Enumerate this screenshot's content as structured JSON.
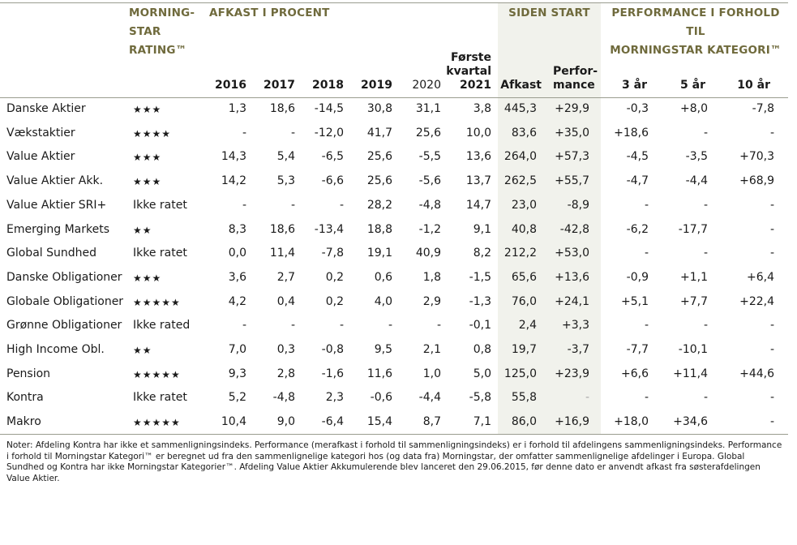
{
  "headers": {
    "rating": [
      "MORNING-",
      "STAR",
      "RATING™"
    ],
    "returns_group": "AFKAST I PROCENT",
    "since_group": "SIDEN START",
    "perf_group": [
      "PERFORMANCE I FORHOLD TIL",
      "MORNINGSTAR KATEGORI™"
    ],
    "years": [
      "2016",
      "2017",
      "2018",
      "2019",
      "2020"
    ],
    "q1": [
      "Første",
      "kvartal",
      "2021"
    ],
    "afkast": "Afkast",
    "performance": [
      "Perfor-",
      "mance"
    ],
    "periods": [
      "3 år",
      "5 år",
      "10 år"
    ]
  },
  "rows": [
    {
      "name": "Danske Aktier",
      "rating": "★★★",
      "y2016": "1,3",
      "y2017": "18,6",
      "y2018": "-14,5",
      "y2019": "30,8",
      "y2020": "31,1",
      "q1": "3,8",
      "afkast": "445,3",
      "perf": "+29,9",
      "p3": "-0,3",
      "p5": "+8,0",
      "p10": "-7,8"
    },
    {
      "name": "Vækstaktier",
      "rating": "★★★★",
      "y2016": "-",
      "y2017": "-",
      "y2018": "-12,0",
      "y2019": "41,7",
      "y2020": "25,6",
      "q1": "10,0",
      "afkast": "83,6",
      "perf": "+35,0",
      "p3": "+18,6",
      "p5": "-",
      "p10": "-"
    },
    {
      "name": "Value Aktier",
      "rating": "★★★",
      "y2016": "14,3",
      "y2017": "5,4",
      "y2018": "-6,5",
      "y2019": "25,6",
      "y2020": "-5,5",
      "q1": "13,6",
      "afkast": "264,0",
      "perf": "+57,3",
      "p3": "-4,5",
      "p5": "-3,5",
      "p10": "+70,3"
    },
    {
      "name": "Value Aktier Akk.",
      "rating": "★★★",
      "y2016": "14,2",
      "y2017": "5,3",
      "y2018": "-6,6",
      "y2019": "25,6",
      "y2020": "-5,6",
      "q1": "13,7",
      "afkast": "262,5",
      "perf": "+55,7",
      "p3": "-4,7",
      "p5": "-4,4",
      "p10": "+68,9"
    },
    {
      "name": "Value Aktier SRI+",
      "rating": "Ikke ratet",
      "y2016": "-",
      "y2017": "-",
      "y2018": "-",
      "y2019": "28,2",
      "y2020": "-4,8",
      "q1": "14,7",
      "afkast": "23,0",
      "perf": "-8,9",
      "p3": "-",
      "p5": "-",
      "p10": "-"
    },
    {
      "name": "Emerging Markets",
      "rating": "★★",
      "y2016": "8,3",
      "y2017": "18,6",
      "y2018": "-13,4",
      "y2019": "18,8",
      "y2020": "-1,2",
      "q1": "9,1",
      "afkast": "40,8",
      "perf": "-42,8",
      "p3": "-6,2",
      "p5": "-17,7",
      "p10": "-"
    },
    {
      "name": "Global Sundhed",
      "rating": "Ikke ratet",
      "y2016": "0,0",
      "y2017": "11,4",
      "y2018": "-7,8",
      "y2019": "19,1",
      "y2020": "40,9",
      "q1": "8,2",
      "afkast": "212,2",
      "perf": "+53,0",
      "p3": "-",
      "p5": "-",
      "p10": "-"
    },
    {
      "name": "Danske Obligationer",
      "rating": "★★★",
      "y2016": "3,6",
      "y2017": "2,7",
      "y2018": "0,2",
      "y2019": "0,6",
      "y2020": "1,8",
      "q1": "-1,5",
      "afkast": "65,6",
      "perf": "+13,6",
      "p3": "-0,9",
      "p5": "+1,1",
      "p10": "+6,4"
    },
    {
      "name": "Globale Obligationer",
      "rating": "★★★★★",
      "y2016": "4,2",
      "y2017": "0,4",
      "y2018": "0,2",
      "y2019": "4,0",
      "y2020": "2,9",
      "q1": "-1,3",
      "afkast": "76,0",
      "perf": "+24,1",
      "p3": "+5,1",
      "p5": "+7,7",
      "p10": "+22,4"
    },
    {
      "name": "Grønne Obligationer",
      "rating": "Ikke rated",
      "y2016": "-",
      "y2017": "-",
      "y2018": "-",
      "y2019": "-",
      "y2020": "-",
      "q1": "-0,1",
      "afkast": "2,4",
      "perf": "+3,3",
      "p3": "-",
      "p5": "-",
      "p10": "-"
    },
    {
      "name": "High Income Obl.",
      "rating": "★★",
      "y2016": "7,0",
      "y2017": "0,3",
      "y2018": "-0,8",
      "y2019": "9,5",
      "y2020": "2,1",
      "q1": "0,8",
      "afkast": "19,7",
      "perf": "-3,7",
      "p3": "-7,7",
      "p5": "-10,1",
      "p10": "-"
    },
    {
      "name": "Pension",
      "rating": "★★★★★",
      "y2016": "9,3",
      "y2017": "2,8",
      "y2018": "-1,6",
      "y2019": "11,6",
      "y2020": "1,0",
      "q1": "5,0",
      "afkast": "125,0",
      "perf": "+23,9",
      "p3": "+6,6",
      "p5": "+11,4",
      "p10": "+44,6"
    },
    {
      "name": "Kontra",
      "rating": "Ikke ratet",
      "y2016": "5,2",
      "y2017": "-4,8",
      "y2018": "2,3",
      "y2019": "-0,6",
      "y2020": "-4,4",
      "q1": "-5,8",
      "afkast": "55,8",
      "perf": "-",
      "p3": "-",
      "p5": "-",
      "p10": "-"
    },
    {
      "name": "Makro",
      "rating": "★★★★★",
      "y2016": "10,4",
      "y2017": "9,0",
      "y2018": "-6,4",
      "y2019": "15,4",
      "y2020": "8,7",
      "q1": "7,1",
      "afkast": "86,0",
      "perf": "+16,9",
      "p3": "+18,0",
      "p5": "+34,6",
      "p10": "-"
    }
  ],
  "note": "Noter: Afdeling Kontra har ikke et sammenligningsindeks. Performance (merafkast i forhold til sammenligningsindeks) er i forhold til afdelingens sammenligningsindeks. Performance i forhold til Morningstar Kategori™ er beregnet ud fra den sammenlignelige kategori hos (og data fra) Morningstar, der omfatter sammenlignelige afdelinger i Europa. Global Sundhed og Kontra har ikke Morningstar Kategorier™. Afdeling Value Aktier Akkumulerende blev lanceret den 29.06.2015, før denne dato er anvendt afkast fra søsterafdelingen Value Aktier.",
  "colors": {
    "header_accent": "#6f6a3c",
    "since_start_band": "#f1f2ec",
    "rule": "#9a9c8f"
  }
}
